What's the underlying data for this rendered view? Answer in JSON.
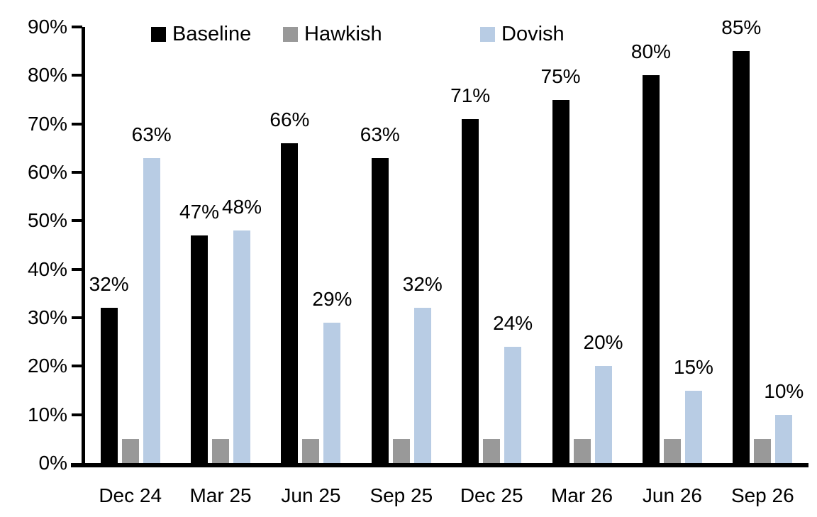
{
  "chart_data": {
    "type": "bar",
    "title": "",
    "categories": [
      "Dec 24",
      "Mar 25",
      "Jun 25",
      "Sep 25",
      "Dec 25",
      "Mar 26",
      "Jun 26",
      "Sep 26"
    ],
    "series": [
      {
        "name": "Baseline",
        "color": "#000000",
        "values": [
          32,
          47,
          66,
          63,
          71,
          75,
          80,
          85
        ],
        "labels": [
          "32%",
          "47%",
          "66%",
          "63%",
          "71%",
          "75%",
          "80%",
          "85%"
        ]
      },
      {
        "name": "Hawkish",
        "color": "#999999",
        "values": [
          5,
          5,
          5,
          5,
          5,
          5,
          5,
          5
        ],
        "labels": [
          null,
          null,
          null,
          null,
          null,
          null,
          null,
          null
        ]
      },
      {
        "name": "Dovish",
        "color": "#b8cce4",
        "values": [
          63,
          48,
          29,
          32,
          24,
          20,
          15,
          10
        ],
        "labels": [
          "63%",
          "48%",
          "29%",
          "32%",
          "24%",
          "20%",
          "15%",
          "10%"
        ]
      }
    ],
    "ylim": [
      0,
      90
    ],
    "ytick_step": 10,
    "ytick_labels": [
      "0%",
      "10%",
      "20%",
      "30%",
      "40%",
      "50%",
      "60%",
      "70%",
      "80%",
      "90%"
    ],
    "grid": false,
    "legend_position": "top",
    "xlabel": "",
    "ylabel": ""
  }
}
